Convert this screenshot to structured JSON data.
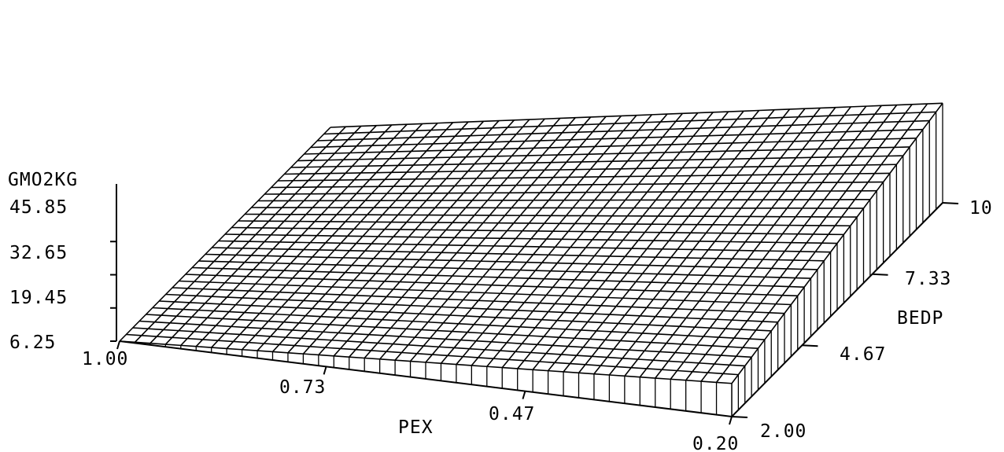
{
  "chart_data": {
    "type": "surface",
    "z_label": "GMO2KG",
    "x_label": "PEX",
    "y_label": "BEDP",
    "z_ticks": [
      "45.85",
      "32.65",
      "19.45",
      "6.25"
    ],
    "x_ticks": [
      "1.00",
      "0.73",
      "0.47",
      "0.20"
    ],
    "y_ticks": [
      "10",
      "7.33",
      "4.67",
      "2.00"
    ],
    "x_range": [
      0.2,
      1.0
    ],
    "y_range": [
      2.0,
      10.0
    ],
    "z_range": [
      6.25,
      45.85
    ],
    "z_corners": {
      "pex_1.00_bedp_2.00": 6.25,
      "pex_1.00_bedp_10": 6.25,
      "pex_0.20_bedp_2.00": 19.45,
      "pex_0.20_bedp_10": 45.85
    },
    "grid": true,
    "mesh_color": "#000000"
  }
}
